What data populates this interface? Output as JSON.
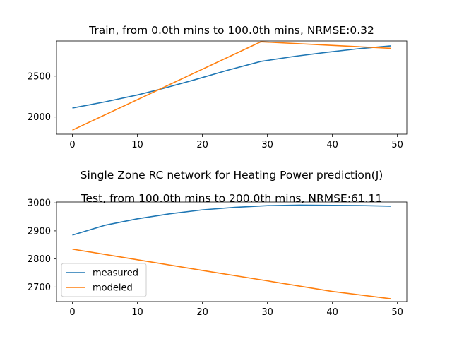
{
  "figure": {
    "suptitle": "Single Zone RC network for Heating Power prediction(J)"
  },
  "chart_data": [
    {
      "type": "line",
      "title": "Train, from 0.0th mins to 100.0th mins, NRMSE:0.32",
      "xlabel": "",
      "ylabel": "",
      "xlim": [
        -2.45,
        51.45
      ],
      "ylim": [
        1790,
        2930
      ],
      "xticks": [
        0,
        10,
        20,
        30,
        40,
        50
      ],
      "yticks": [
        2000,
        2500
      ],
      "grid": false,
      "series": [
        {
          "name": "measured",
          "color": "#1f77b4",
          "x": [
            0,
            5,
            10,
            14,
            19,
            24,
            29,
            34,
            39,
            44,
            49
          ],
          "y": [
            2110,
            2185,
            2270,
            2350,
            2460,
            2575,
            2680,
            2740,
            2790,
            2835,
            2870
          ]
        },
        {
          "name": "modeled",
          "color": "#ff7f0e",
          "x": [
            0,
            29,
            39,
            49
          ],
          "y": [
            1840,
            2920,
            2880,
            2840
          ]
        }
      ]
    },
    {
      "type": "line",
      "title": "Test, from 100.0th mins to 200.0th mins, NRMSE:61.11",
      "xlabel": "",
      "ylabel": "",
      "xlim": [
        -2.45,
        51.45
      ],
      "ylim": [
        2648,
        3003
      ],
      "xticks": [
        0,
        10,
        20,
        30,
        40,
        50
      ],
      "yticks": [
        2700,
        2800,
        2900,
        3000
      ],
      "grid": false,
      "legend": "lower-left",
      "series": [
        {
          "name": "measured",
          "color": "#1f77b4",
          "x": [
            0,
            5,
            10,
            15,
            20,
            25,
            30,
            35,
            40,
            45,
            49
          ],
          "y": [
            2885,
            2920,
            2943,
            2961,
            2975,
            2984,
            2990,
            2992,
            2991,
            2990,
            2988
          ]
        },
        {
          "name": "modeled",
          "color": "#ff7f0e",
          "x": [
            0,
            10,
            20,
            30,
            40,
            49
          ],
          "y": [
            2835,
            2797,
            2759,
            2722,
            2684,
            2658
          ]
        }
      ]
    }
  ]
}
